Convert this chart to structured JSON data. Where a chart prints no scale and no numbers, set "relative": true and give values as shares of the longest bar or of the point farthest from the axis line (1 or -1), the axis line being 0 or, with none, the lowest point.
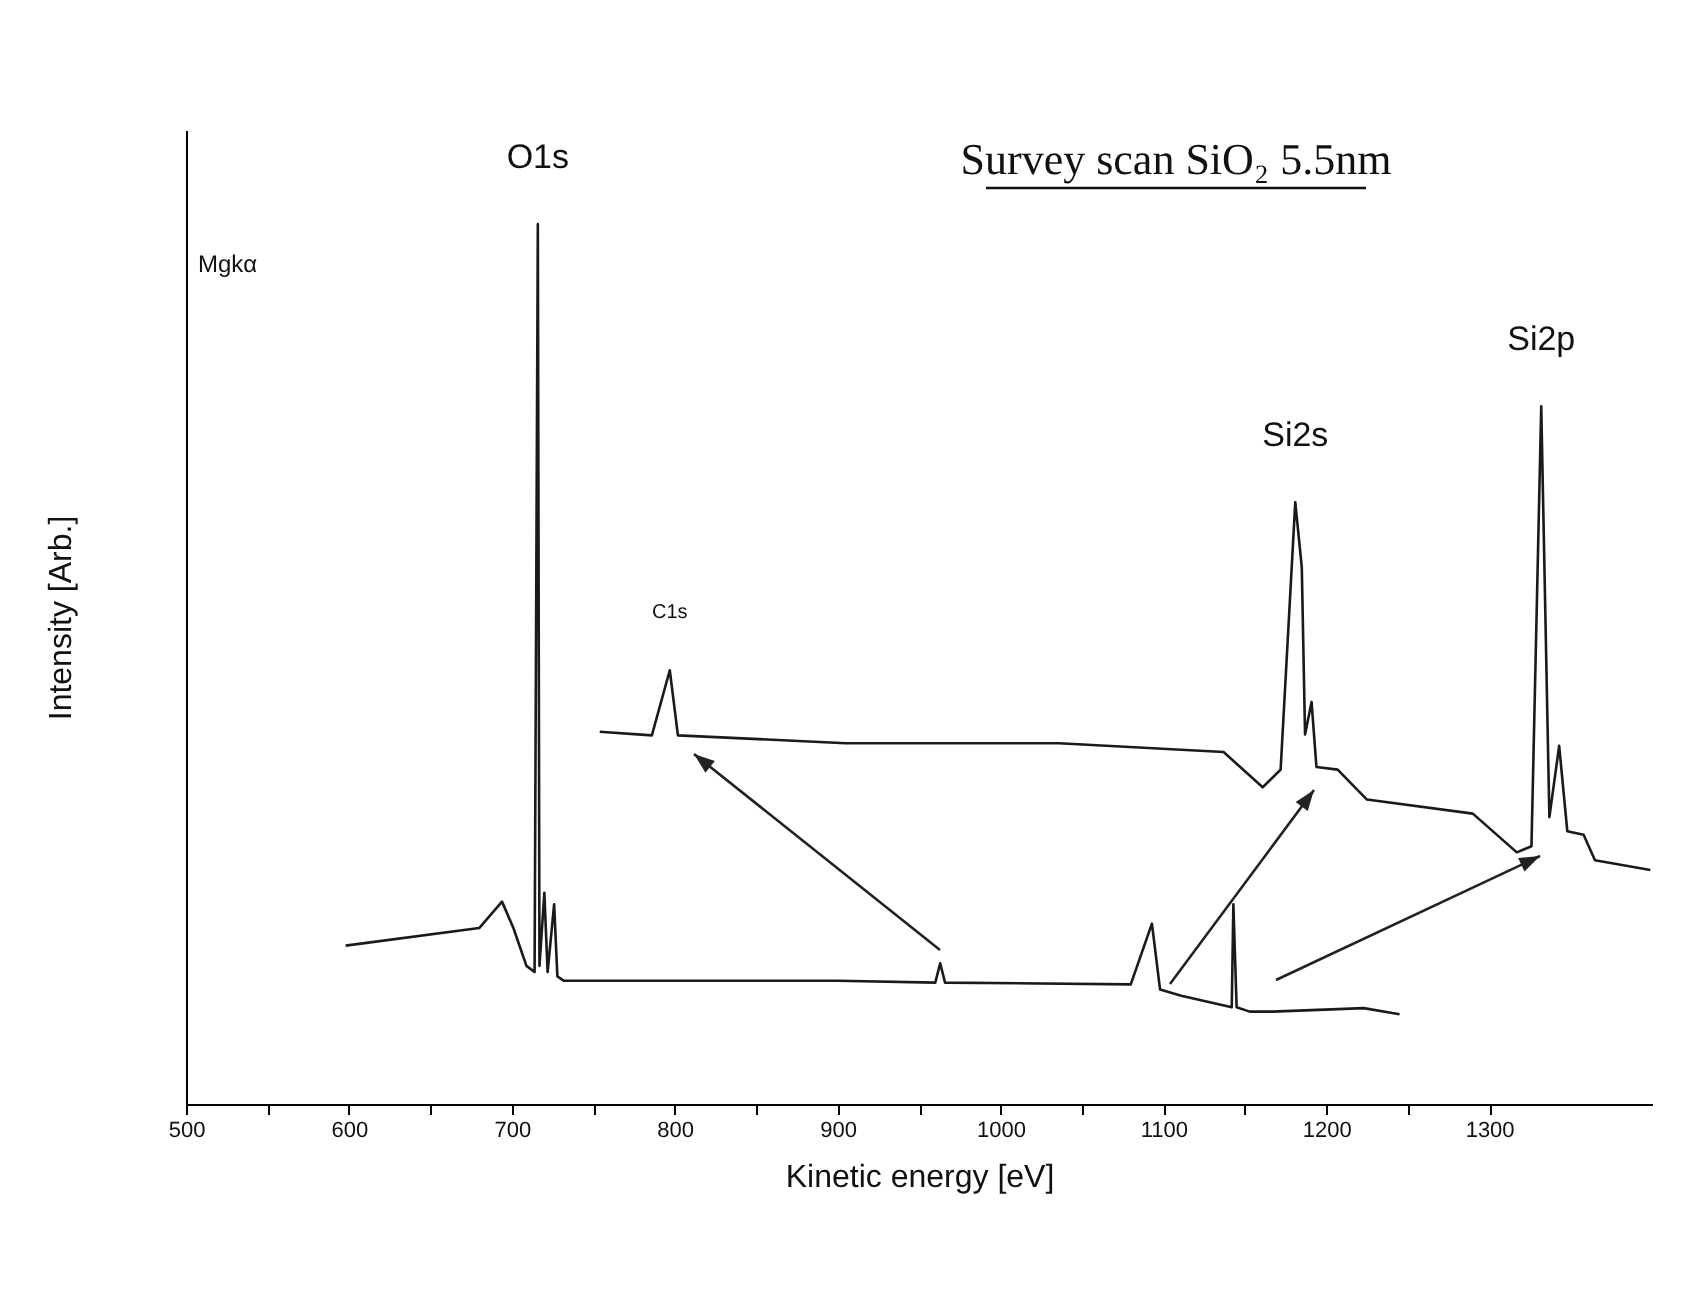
{
  "chart_data": {
    "type": "line",
    "title": "Survey scan SiO₂ 5.5nm",
    "xlabel": "Kinetic energy [eV]",
    "ylabel": "Intensity [Arb.]",
    "relative": true,
    "xlim": [
      500,
      1400
    ],
    "xticks": [
      500,
      {
        "value": 550,
        "label": null
      },
      600,
      {
        "value": 650,
        "label": null
      },
      700,
      {
        "value": 750,
        "label": null
      },
      800,
      {
        "value": 850,
        "label": null
      },
      900,
      {
        "value": 950,
        "label": null
      },
      1000,
      {
        "value": 1050,
        "label": null
      },
      1100,
      {
        "value": 1150,
        "label": null
      },
      1200,
      {
        "value": 1250,
        "label": null
      },
      1300
    ],
    "series": [
      {
        "color": "#1a1a1a",
        "x": [
          598,
          680,
          694,
          701,
          709,
          714,
          716,
          717,
          720,
          722,
          726,
          728,
          732,
          900,
          960,
          963,
          966,
          1080,
          1093,
          1098,
          1111,
          1142,
          1143,
          1145,
          1153,
          1167,
          1223,
          1245
        ],
        "values": [
          0.18,
          0.2,
          0.23,
          0.2,
          0.157,
          0.15,
          1.0,
          0.157,
          0.24,
          0.15,
          0.227,
          0.145,
          0.14,
          0.14,
          0.138,
          0.16,
          0.138,
          0.136,
          0.205,
          0.13,
          0.123,
          0.11,
          0.227,
          0.11,
          0.105,
          0.105,
          0.109,
          0.102
        ]
      },
      {
        "color": "#1a1a1a",
        "x": [
          754,
          786,
          797,
          802,
          905,
          1036,
          1137,
          1161,
          1172,
          1181,
          1185,
          1187,
          1191,
          1194,
          1207,
          1225,
          1290,
          1317,
          1326,
          1332,
          1337,
          1343,
          1348,
          1358,
          1365,
          1399
        ],
        "values": [
          0.423,
          0.419,
          0.493,
          0.419,
          0.41,
          0.41,
          0.4,
          0.36,
          0.38,
          0.684,
          0.61,
          0.42,
          0.457,
          0.383,
          0.38,
          0.346,
          0.33,
          0.286,
          0.293,
          0.793,
          0.326,
          0.407,
          0.31,
          0.306,
          0.277,
          0.266
        ]
      }
    ],
    "annotations": [
      {
        "text": "O1s",
        "x": 716,
        "y": 1.0
      },
      {
        "text": "C1s",
        "x": 797,
        "y": 0.493
      },
      {
        "text": "Si2s",
        "x": 1181,
        "y": 0.684
      },
      {
        "text": "Si2p",
        "x": 1332,
        "y": 0.793
      },
      "Mgkα"
    ],
    "grid": false,
    "marker": "none",
    "line_style": "solid"
  }
}
